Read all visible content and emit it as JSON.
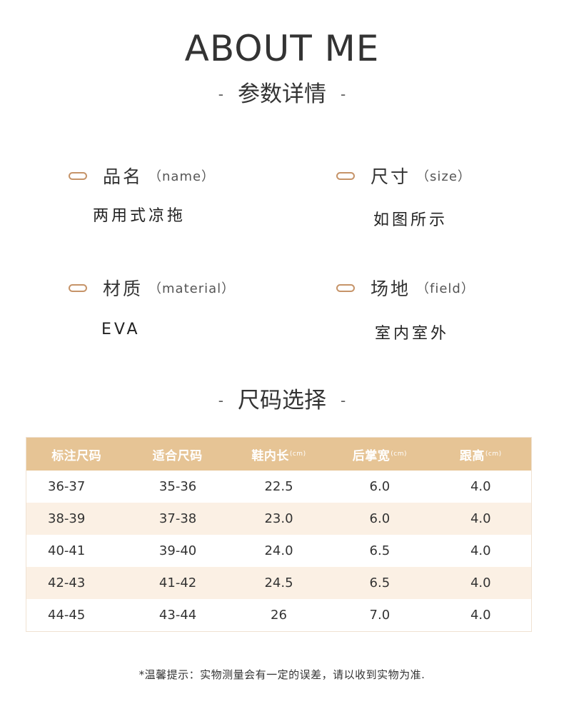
{
  "header": {
    "title": "ABOUT ME",
    "subtitle": "参数详情",
    "dash": "-"
  },
  "specs": {
    "name": {
      "label": "品名",
      "label_en": "（name）",
      "value": "两用式凉拖"
    },
    "size": {
      "label": "尺寸",
      "label_en": "（size）",
      "value": "如图所示"
    },
    "material": {
      "label": "材质",
      "label_en": "（material）",
      "value": "EVA"
    },
    "field": {
      "label": "场地",
      "label_en": "（field）",
      "value": "室内室外"
    }
  },
  "size_section": {
    "title": "尺码选择",
    "dash": "-"
  },
  "size_table": {
    "headers": [
      {
        "label": "标注尺码",
        "unit": ""
      },
      {
        "label": "适合尺码",
        "unit": ""
      },
      {
        "label": "鞋内长",
        "unit": "(cm)"
      },
      {
        "label": "后掌宽",
        "unit": "(cm)"
      },
      {
        "label": "跟高",
        "unit": "(cm)"
      }
    ],
    "rows": [
      [
        "36-37",
        "35-36",
        "22.5",
        "6.0",
        "4.0"
      ],
      [
        "38-39",
        "37-38",
        "23.0",
        "6.0",
        "4.0"
      ],
      [
        "40-41",
        "39-40",
        "24.0",
        "6.5",
        "4.0"
      ],
      [
        "42-43",
        "41-42",
        "24.5",
        "6.5",
        "4.0"
      ],
      [
        "44-45",
        "43-44",
        "26",
        "7.0",
        "4.0"
      ]
    ]
  },
  "footer": {
    "note": "*温馨提示：实物测量会有一定的误差，请以收到实物为准."
  },
  "colors": {
    "accent": "#c69469",
    "table_header": "#e6c495",
    "row_alt": "#fbf0e4"
  }
}
